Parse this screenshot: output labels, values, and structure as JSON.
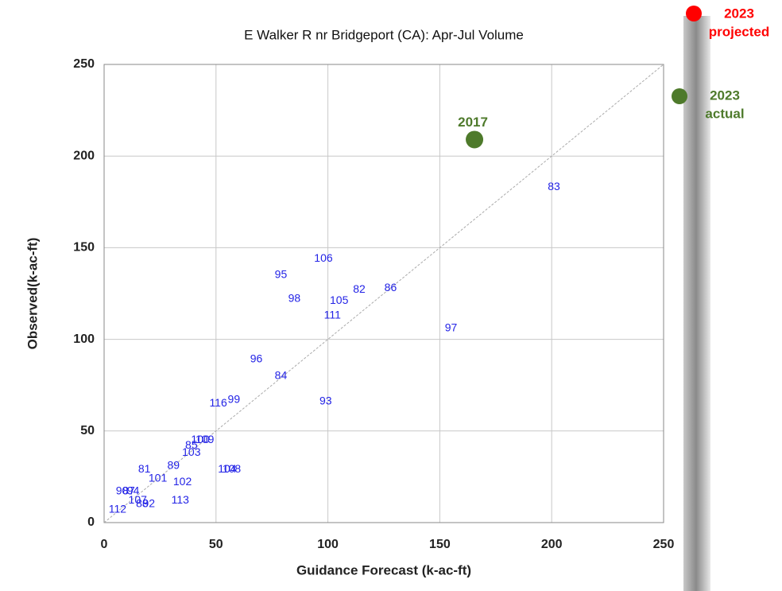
{
  "chart_data": {
    "type": "scatter",
    "title": "E Walker R nr Bridgeport (CA): Apr-Jul Volume",
    "xlabel": "Guidance Forecast (k-ac-ft)",
    "ylabel": "Observed(k-ac-ft)",
    "xlim": [
      0,
      250
    ],
    "ylim": [
      0,
      250
    ],
    "xticks": [
      0,
      50,
      100,
      150,
      200,
      250
    ],
    "yticks": [
      0,
      50,
      100,
      150,
      200,
      250
    ],
    "grid": true,
    "color": "#2323e6",
    "point_labels": [
      "83",
      "106",
      "95",
      "98",
      "82",
      "86",
      "105",
      "111",
      "97",
      "96",
      "84",
      "116",
      "99",
      "93",
      "85",
      "100",
      "109",
      "103",
      "81",
      "89",
      "101",
      "102",
      "104",
      "108",
      "113",
      "112",
      "90",
      "87",
      "94",
      "107",
      "88",
      "92"
    ],
    "x": [
      201,
      98,
      79,
      85,
      114,
      128,
      105,
      102,
      155,
      68,
      79,
      51,
      58,
      99,
      39,
      43,
      45,
      39,
      18,
      31,
      24,
      35,
      55,
      57,
      34,
      6,
      8,
      11,
      13,
      15,
      17,
      20
    ],
    "values": [
      183,
      144,
      135,
      122,
      127,
      128,
      121,
      113,
      106,
      89,
      80,
      65,
      67,
      66,
      42,
      45,
      45,
      38,
      29,
      31,
      24,
      22,
      29,
      29,
      12,
      7,
      17,
      17,
      17,
      12,
      10,
      10
    ],
    "highlight": {
      "label": "2017",
      "x": 165.5,
      "y": 209,
      "color": "#4e7a2b"
    },
    "annotations": [
      {
        "lines": [
          "2023",
          "projected"
        ],
        "color": "#ff0000"
      },
      {
        "lines": [
          "2023",
          "actual"
        ],
        "color": "#4e7a2b"
      }
    ]
  }
}
